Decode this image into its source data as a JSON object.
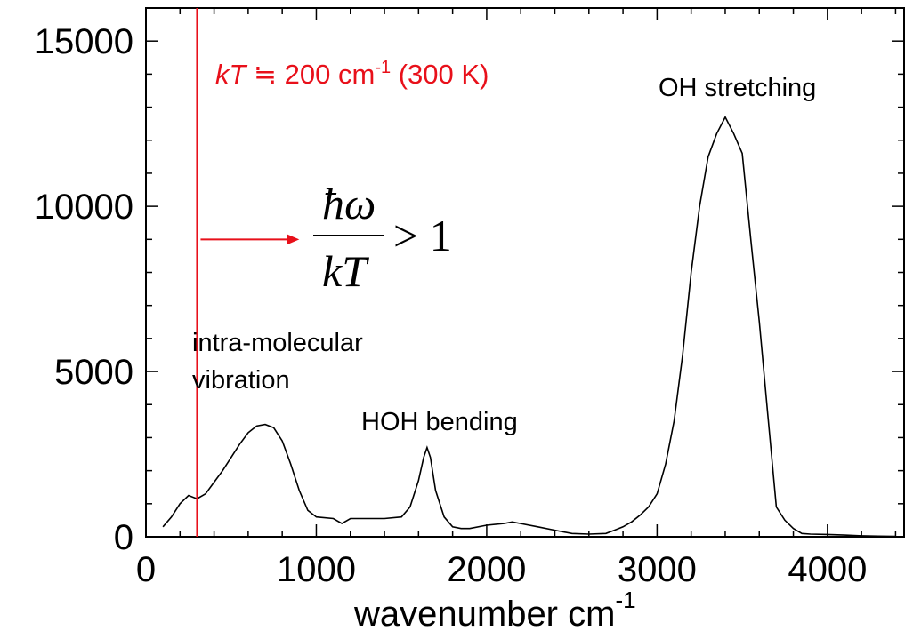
{
  "chart_data": {
    "type": "line",
    "xlabel": "wavenumber cm",
    "xlabel_sup": "-1",
    "xlim": [
      0,
      4450
    ],
    "ylim": [
      0,
      16000
    ],
    "x_ticks": [
      0,
      1000,
      2000,
      3000,
      4000
    ],
    "x_tick_labels": [
      "0",
      "1000",
      "2000",
      "3000",
      "4000"
    ],
    "y_ticks": [
      0,
      5000,
      10000,
      15000
    ],
    "y_tick_labels": [
      "0",
      "5000",
      "10000",
      "15000"
    ],
    "series": [
      {
        "color": "#000000",
        "x": [
          100,
          150,
          200,
          250,
          300,
          350,
          400,
          450,
          500,
          550,
          600,
          650,
          700,
          750,
          800,
          850,
          900,
          950,
          1000,
          1100,
          1150,
          1200,
          1250,
          1300,
          1400,
          1500,
          1550,
          1600,
          1630,
          1650,
          1670,
          1700,
          1750,
          1800,
          1850,
          1900,
          2000,
          2100,
          2150,
          2200,
          2300,
          2400,
          2500,
          2600,
          2700,
          2750,
          2800,
          2850,
          2900,
          2950,
          3000,
          3050,
          3100,
          3150,
          3200,
          3250,
          3300,
          3350,
          3400,
          3450,
          3500,
          3550,
          3600,
          3650,
          3700,
          3750,
          3800,
          3850,
          3900,
          4000,
          4100,
          4200,
          4300,
          4400
        ],
        "y": [
          300,
          600,
          1000,
          1250,
          1150,
          1300,
          1650,
          2000,
          2400,
          2800,
          3150,
          3350,
          3400,
          3300,
          2900,
          2200,
          1400,
          800,
          600,
          550,
          400,
          550,
          550,
          550,
          550,
          600,
          900,
          1700,
          2400,
          2700,
          2400,
          1400,
          600,
          300,
          250,
          250,
          350,
          400,
          450,
          400,
          300,
          200,
          100,
          80,
          100,
          200,
          300,
          450,
          650,
          900,
          1300,
          2200,
          3500,
          5500,
          8000,
          10000,
          11500,
          12200,
          12700,
          12200,
          11600,
          9000,
          6500,
          3700,
          900,
          500,
          250,
          100,
          80,
          70,
          50,
          30,
          20,
          10
        ]
      }
    ],
    "red_line_x": 300,
    "arrow": {
      "from_x": 300,
      "to_x": 900,
      "y": 9000
    },
    "annotations": {
      "kt_italic": "kT",
      "kt_rest": " ≒ 200 cm",
      "kt_sup": "-1",
      "kt_tail": " (300 K)",
      "oh": "OH stretching",
      "hoh": "HOH bending",
      "intra_line1": "intra-molecular",
      "intra_line2": "vibration",
      "frac_num": "ħω",
      "frac_den": "kT",
      "frac_rhs": "> 1"
    },
    "colors": {
      "curve": "#000000",
      "highlight": "#e8101a"
    }
  }
}
